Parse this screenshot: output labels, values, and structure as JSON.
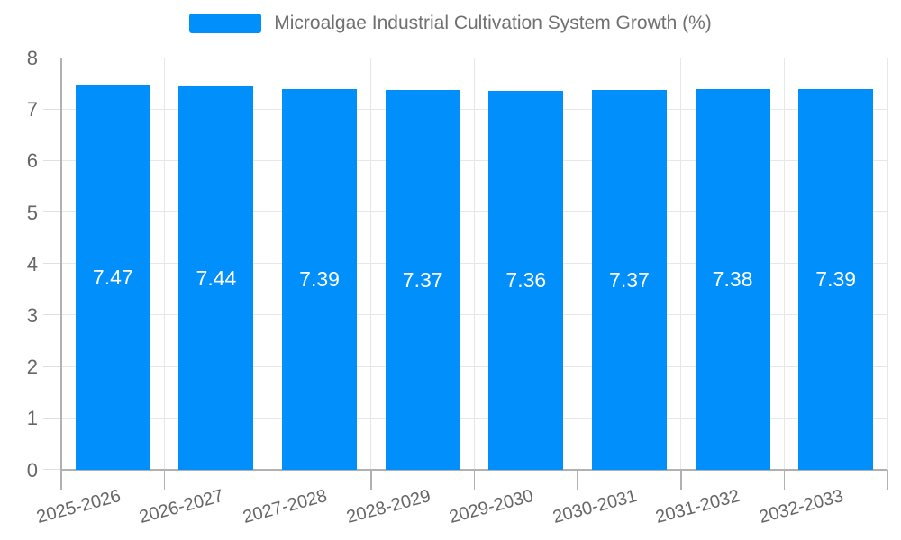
{
  "chart_data": {
    "type": "bar",
    "title": "Microalgae Industrial Cultivation System Growth (%)",
    "legend": {
      "position": "top",
      "label": "Microalgae Industrial Cultivation System Growth (%)"
    },
    "categories": [
      "2025-2026",
      "2026-2027",
      "2027-2028",
      "2028-2029",
      "2029-2030",
      "2030-2031",
      "2031-2032",
      "2032-2033"
    ],
    "series": [
      {
        "name": "Microalgae Industrial Cultivation System Growth (%)",
        "values": [
          7.47,
          7.44,
          7.39,
          7.37,
          7.36,
          7.37,
          7.38,
          7.39
        ],
        "data_labels": [
          "7.47",
          "7.44",
          "7.39",
          "7.37",
          "7.36",
          "7.37",
          "7.38",
          "7.39"
        ]
      }
    ],
    "xlabel": "",
    "ylabel": "",
    "ylim": [
      0,
      8
    ],
    "yticks": [
      0,
      1,
      2,
      3,
      4,
      5,
      6,
      7,
      8
    ],
    "grid": true,
    "data_label_position": "center",
    "colors": {
      "bar": "#008FFB",
      "grid": "#e7e7e7",
      "y_tick": "#e0e0e0",
      "axis": "#b1b1b1",
      "tick": "#b1b1b1",
      "axis_label": "#666666",
      "legend_text": "#707070",
      "data_label": "#ffffff",
      "background": "#ffffff"
    }
  }
}
